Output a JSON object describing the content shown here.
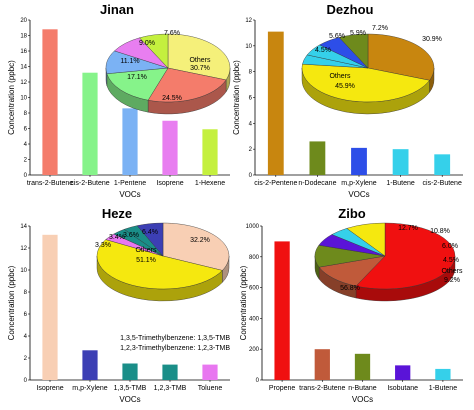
{
  "figure": {
    "colors": {
      "axis": "#000000",
      "pie_edge": "#333333"
    }
  },
  "chart_data": [
    {
      "id": "jinan",
      "type": "bar",
      "title": "Jinan",
      "xlabel": "VOCs",
      "ylabel": "Concentration (ppbc)",
      "ylim": [
        0,
        20
      ],
      "yticks": [
        0,
        2,
        4,
        6,
        8,
        10,
        12,
        14,
        16,
        18,
        20
      ],
      "categories": [
        "trans-2-Butene",
        "cis-2-Butene",
        "1-Pentene",
        "Isoprene",
        "1-Hexene"
      ],
      "values": [
        18.8,
        13.2,
        8.6,
        7.0,
        5.9
      ],
      "colors": [
        "#f47c6b",
        "#86f38a",
        "#7bb2f4",
        "#e87ef0",
        "#c4f03e"
      ],
      "pie": {
        "slices": [
          {
            "label": "Others",
            "value": 30.7,
            "color": "#f5f07a"
          },
          {
            "label": "24.5%",
            "value": 24.5,
            "color": "#f47c6b"
          },
          {
            "label": "17.1%",
            "value": 17.1,
            "color": "#86f38a"
          },
          {
            "label": "11.1%",
            "value": 11.1,
            "color": "#7bb2f4"
          },
          {
            "label": "9.0%",
            "value": 9.0,
            "color": "#e87ef0"
          },
          {
            "label": "7.6%",
            "value": 7.6,
            "color": "#c4f03e"
          }
        ],
        "text": [
          "Others",
          "30.7%",
          "24.5%",
          "17.1%",
          "11.1%",
          "9.0%",
          "7.6%"
        ]
      }
    },
    {
      "id": "dezhou",
      "type": "bar",
      "title": "Dezhou",
      "xlabel": "VOCs",
      "ylabel": "Concentration (ppbc)",
      "ylim": [
        0,
        12
      ],
      "yticks": [
        0,
        2,
        4,
        6,
        8,
        10,
        12
      ],
      "categories": [
        "cis-2-Pentene",
        "n-Dodecane",
        "m,p-Xylene",
        "1-Butene",
        "cis-2-Butene"
      ],
      "values": [
        11.1,
        2.6,
        2.1,
        2.0,
        1.6
      ],
      "colors": [
        "#c8860f",
        "#6e8a1c",
        "#2d4ee8",
        "#35d0ea",
        "#35d0ea"
      ],
      "pie": {
        "slices": [
          {
            "label": "30.9%",
            "value": 30.9,
            "color": "#c8860f"
          },
          {
            "label": "Others",
            "value": 45.9,
            "color": "#f5e80f"
          },
          {
            "label": "4.5%",
            "value": 4.5,
            "color": "#35d0ea"
          },
          {
            "label": "5.6%",
            "value": 5.6,
            "color": "#35d0ea"
          },
          {
            "label": "5.9%",
            "value": 5.9,
            "color": "#2d4ee8"
          },
          {
            "label": "7.2%",
            "value": 7.2,
            "color": "#6e8a1c"
          }
        ],
        "text": [
          "30.9%",
          "Others",
          "45.9%",
          "4.5%",
          "5.6%",
          "5.9%",
          "7.2%"
        ]
      }
    },
    {
      "id": "heze",
      "type": "bar",
      "title": "Heze",
      "xlabel": "VOCs",
      "ylabel": "Concentration (ppbc)",
      "ylim": [
        0,
        14
      ],
      "yticks": [
        0,
        2,
        4,
        6,
        8,
        10,
        12,
        14
      ],
      "categories": [
        "Isoprene",
        "m,p-Xylene",
        "1,3,5-TMB",
        "1,2,3-TMB",
        "Toluene"
      ],
      "values": [
        13.2,
        2.7,
        1.5,
        1.4,
        1.4
      ],
      "colors": [
        "#f8cfb4",
        "#3c3fb4",
        "#1a8e88",
        "#1a8e88",
        "#e877f0"
      ],
      "annotations": [
        "1,3,5-Trimethylbenzene: 1,3,5-TMB",
        "1,2,3-Trimethylbenzene: 1,2,3-TMB"
      ],
      "pie": {
        "slices": [
          {
            "label": "32.2%",
            "value": 32.2,
            "color": "#f8cfb4"
          },
          {
            "label": "Others",
            "value": 51.1,
            "color": "#f5e80f"
          },
          {
            "label": "3.3%",
            "value": 3.3,
            "color": "#e877f0"
          },
          {
            "label": "3.4%",
            "value": 3.4,
            "color": "#1a8e88"
          },
          {
            "label": "3.6%",
            "value": 3.6,
            "color": "#1a8e88"
          },
          {
            "label": "6.4%",
            "value": 6.4,
            "color": "#3c3fb4"
          }
        ],
        "text": [
          "32.2%",
          "Others",
          "51.1%",
          "3.3%",
          "3.4%",
          "3.6%",
          "6.4%"
        ]
      }
    },
    {
      "id": "zibo",
      "type": "bar",
      "title": "Zibo",
      "xlabel": "VOCs",
      "ylabel": "Concentration (ppbc)",
      "ylim": [
        0,
        1000
      ],
      "yticks": [
        0,
        200,
        400,
        600,
        800,
        1000
      ],
      "categories": [
        "Propene",
        "trans-2-Butene",
        "n-Butane",
        "Isobutane",
        "1-Butene"
      ],
      "values": [
        900,
        200,
        170,
        95,
        72
      ],
      "colors": [
        "#f01010",
        "#c05a3a",
        "#6e8a1c",
        "#5a14d8",
        "#35d0ea"
      ],
      "pie": {
        "slices": [
          {
            "label": "56.8%",
            "value": 56.8,
            "color": "#f01010"
          },
          {
            "label": "12.7%",
            "value": 12.7,
            "color": "#c05a3a"
          },
          {
            "label": "10.8%",
            "value": 10.8,
            "color": "#6e8a1c"
          },
          {
            "label": "6.0%",
            "value": 6.0,
            "color": "#5a14d8"
          },
          {
            "label": "4.5%",
            "value": 4.5,
            "color": "#35d0ea"
          },
          {
            "label": "Others",
            "value": 9.2,
            "color": "#f5e80f"
          }
        ],
        "text": [
          "56.8%",
          "12.7%",
          "10.8%",
          "6.0%",
          "4.5%",
          "Others",
          "9.2%"
        ]
      }
    }
  ]
}
